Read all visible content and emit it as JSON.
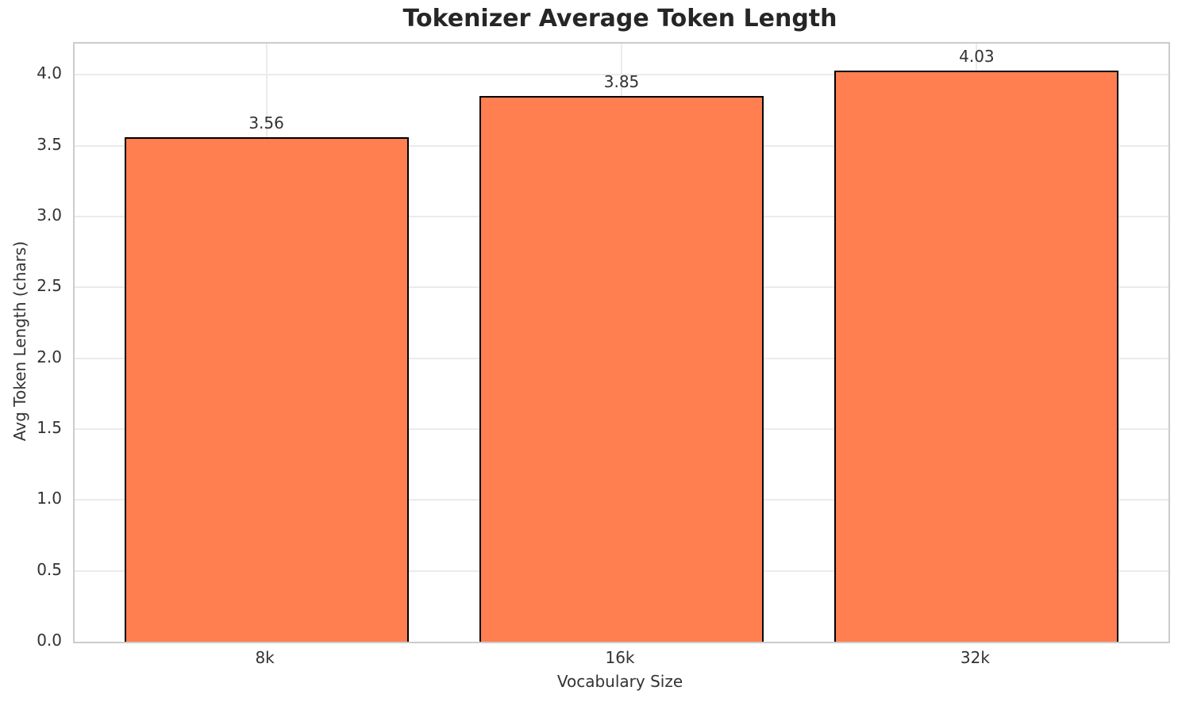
{
  "chart_data": {
    "type": "bar",
    "title": "Tokenizer Average Token Length",
    "xlabel": "Vocabulary Size",
    "ylabel": "Avg Token Length (chars)",
    "categories": [
      "8k",
      "16k",
      "32k"
    ],
    "values": [
      3.56,
      3.85,
      4.03
    ],
    "bar_labels": [
      "3.56",
      "3.85",
      "4.03"
    ],
    "yticks": [
      0,
      0.5,
      1,
      1.5,
      2,
      2.5,
      3,
      3.5,
      4
    ],
    "ytick_labels": [
      "0.0",
      "0.5",
      "1.0",
      "1.5",
      "2.0",
      "2.5",
      "3.0",
      "3.5",
      "4.0"
    ],
    "ylim": [
      0,
      4.22
    ],
    "xlim": [
      -0.54,
      2.54
    ],
    "bar_width": 0.8,
    "grid": "both",
    "legend": "none",
    "colors": {
      "bar_fill": "#ff7f50",
      "bar_edge": "#000000",
      "grid": "#ebebeb",
      "spine": "#cccccc",
      "title_text": "#262626",
      "tick_text": "#333333"
    }
  }
}
